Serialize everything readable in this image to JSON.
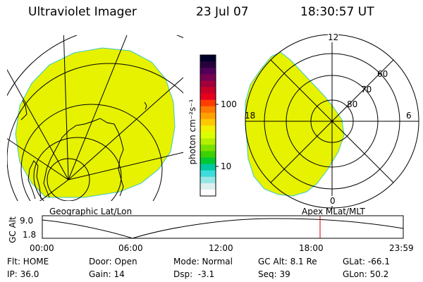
{
  "header": {
    "instrument": "Ultraviolet Imager",
    "date": "23 Jul 07",
    "time": "18:30:57 UT"
  },
  "colorbar": {
    "unit_label": "photon cm⁻²s⁻¹",
    "ticks": [
      "100",
      "10"
    ],
    "colors": [
      "#000028",
      "#28003c",
      "#50005a",
      "#780050",
      "#a0003c",
      "#c80028",
      "#e6001e",
      "#ff3c00",
      "#ff7800",
      "#ffa000",
      "#ffc800",
      "#f0f000",
      "#dcff00",
      "#b4f000",
      "#78e000",
      "#3cd000",
      "#00c832",
      "#00c8a0",
      "#3cdcdc",
      "#96e6e6",
      "#dcf0f0",
      "#ffffff"
    ]
  },
  "left_map": {
    "label": "Geographic Lat/Lon",
    "fill_color": "#e6f200"
  },
  "right_map": {
    "label": "Apex MLat/MLT",
    "mlt_labels": {
      "top": "12",
      "right": "6",
      "bottom": "0",
      "left": "18"
    },
    "lat_labels": [
      "60",
      "70",
      "80"
    ],
    "fill_color": "#e6f200"
  },
  "altitude_plot": {
    "ylabel": "GC Alt",
    "yticks": [
      "9.0",
      "1.8"
    ],
    "xticks": [
      "00:00",
      "06:00",
      "12:00",
      "18:00",
      "23:59"
    ],
    "marker_time": "18:31",
    "marker_color": "#cc0000"
  },
  "info_rows": [
    [
      "Flt: HOME",
      "Door: Open",
      "Mode: Normal",
      "GC Alt: 8.1 Re",
      "GLat: -66.1"
    ],
    [
      "IP: 36.0",
      "Gain: 14",
      "Dsp:  -3.1",
      "Seq: 39",
      "GLon: 50.2"
    ]
  ]
}
